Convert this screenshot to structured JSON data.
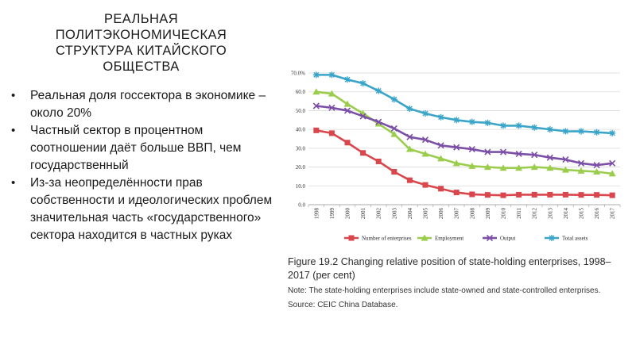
{
  "slide": {
    "title_lines": [
      "РЕАЛЬНАЯ",
      "ПОЛИТЭКОНОМИЧЕСКАЯ",
      "СТРУКТУРА КИТАЙСКОГО",
      "ОБЩЕСТВА"
    ],
    "bullets": [
      "Реальная доля госсектора в экономике – около 20%",
      "Частный сектор в процентном соотношении даёт больше ВВП, чем государственный",
      "Из-за неопределённости прав собственности и идеологических проблем значительная часть «государственного» сектора находится в частных руках"
    ]
  },
  "figure": {
    "caption": "Figure 19.2 Changing relative position of state-holding enterprises, 1998–2017 (per cent)",
    "note": "Note: The state-holding enterprises include state-owned and state-controlled enterprises.",
    "source": "Source: CEIC China Database."
  },
  "chart_data": {
    "type": "line",
    "x": [
      "1998",
      "1999",
      "2000",
      "2001",
      "2002",
      "2003",
      "2004",
      "2005",
      "2006",
      "2007",
      "2008",
      "2009",
      "2010",
      "2011",
      "2012",
      "2013",
      "2014",
      "2015",
      "2016",
      "2017"
    ],
    "ylim": [
      0,
      70
    ],
    "yticks": [
      "0.0",
      "10.0",
      "20.0",
      "30.0",
      "40.0",
      "50.0",
      "60.0",
      "70.0%"
    ],
    "grid": true,
    "legend": "bottom",
    "series": [
      {
        "name": "Number of enterprises",
        "color": "#d9464c",
        "marker": "square",
        "values": [
          39.5,
          38,
          33,
          27.5,
          23,
          17.5,
          13,
          10.5,
          8.5,
          6.5,
          5.5,
          5.2,
          5,
          5.3,
          5.3,
          5.3,
          5.3,
          5.2,
          5.2,
          5
        ]
      },
      {
        "name": "Employment",
        "color": "#9acd4c",
        "marker": "triangle",
        "values": [
          60,
          59,
          53.5,
          48.5,
          43,
          37.5,
          29.5,
          27,
          24.5,
          22,
          20.5,
          20,
          19.5,
          19.5,
          20,
          19.5,
          18.5,
          18,
          17.5,
          16.5
        ]
      },
      {
        "name": "Output",
        "color": "#7b4fa8",
        "marker": "x",
        "values": [
          52.5,
          51.5,
          50,
          47,
          44,
          40.5,
          36,
          34.5,
          31.5,
          30.5,
          29.5,
          28,
          28,
          27,
          26.5,
          25,
          24,
          22,
          21,
          22
        ]
      },
      {
        "name": "Total assets",
        "color": "#3aa5c9",
        "marker": "star",
        "values": [
          69,
          69,
          66.5,
          64.5,
          60.5,
          56,
          51,
          48.5,
          46.5,
          45,
          44,
          43.5,
          42,
          42,
          41,
          40,
          39,
          39,
          38.5,
          38
        ]
      }
    ]
  }
}
